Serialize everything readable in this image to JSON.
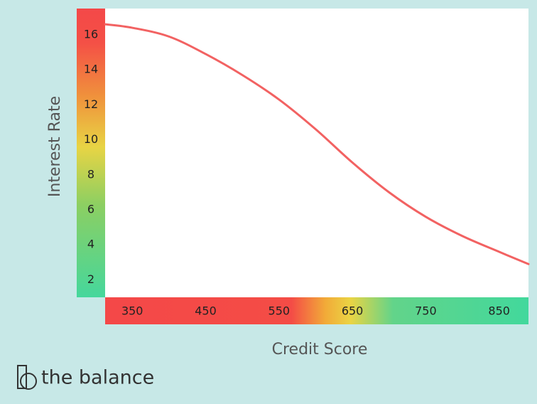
{
  "chart_data": {
    "type": "line",
    "x_label": "Credit Score",
    "y_label": "Interest Rate",
    "x": [
      313,
      350,
      400,
      450,
      500,
      550,
      600,
      650,
      700,
      750,
      800,
      850,
      890
    ],
    "values": [
      16.6,
      16.4,
      15.9,
      14.9,
      13.7,
      12.3,
      10.6,
      8.7,
      7.0,
      5.6,
      4.5,
      3.6,
      2.9
    ],
    "color": "#f26262",
    "xlim": [
      313,
      890
    ],
    "ylim": [
      1,
      17.5
    ],
    "xticks": [
      350,
      450,
      550,
      650,
      750,
      850
    ],
    "yticks": [
      2,
      4,
      6,
      8,
      10,
      12,
      14,
      16
    ]
  },
  "brand": "the balance"
}
